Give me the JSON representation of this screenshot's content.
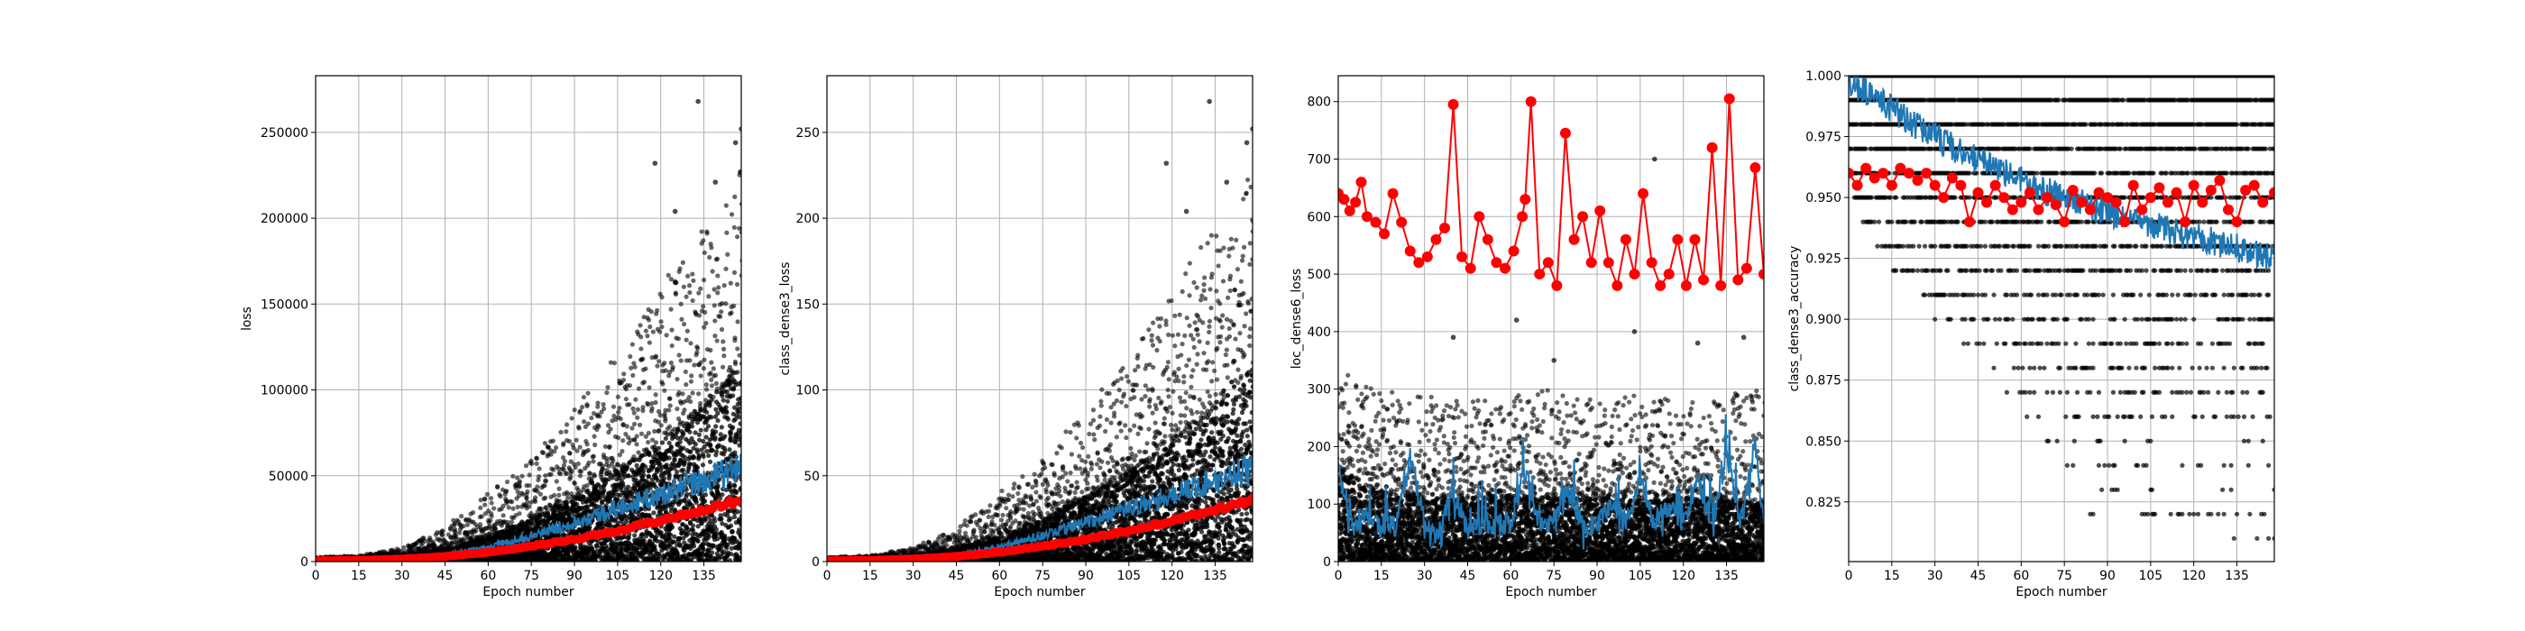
{
  "chart_data": [
    {
      "type": "scatter",
      "xlabel": "Epoch number",
      "ylabel": "loss",
      "xlim": [
        0,
        148
      ],
      "ylim": [
        0,
        283000
      ],
      "grid": true,
      "x_ticks": [
        0,
        15,
        30,
        45,
        60,
        75,
        90,
        105,
        120,
        135
      ],
      "y_ticks": [
        0,
        50000,
        100000,
        150000,
        200000,
        250000
      ],
      "y_tick_labels": [
        "0",
        "50000",
        "100000",
        "150000",
        "200000",
        "250000"
      ],
      "series": [
        {
          "role": "scatter",
          "color": "#000000",
          "kind": "points",
          "envelope_x": [
            0,
            15,
            30,
            45,
            60,
            75,
            90,
            105,
            120,
            135,
            148
          ],
          "envelope_low": [
            0,
            0,
            0,
            0,
            0,
            0,
            0,
            0,
            0,
            0,
            0
          ],
          "envelope_mid": [
            1500,
            1800,
            3000,
            7000,
            14000,
            24000,
            37000,
            52000,
            70000,
            90000,
            112000
          ],
          "envelope_high": [
            2500,
            3500,
            8000,
            20000,
            40000,
            60000,
            90000,
            120000,
            160000,
            195000,
            230000
          ],
          "extremes": [
            [
              118,
              232000
            ],
            [
              133,
              268000
            ],
            [
              148,
              252000
            ],
            [
              146,
              244000
            ],
            [
              125,
              204000
            ],
            [
              139,
              221000
            ]
          ]
        },
        {
          "role": "line",
          "color": "#1f77b4",
          "kind": "line",
          "x": [
            0,
            15,
            30,
            45,
            60,
            75,
            90,
            105,
            120,
            135,
            148
          ],
          "y": [
            500,
            800,
            1800,
            4200,
            8500,
            15000,
            23000,
            31000,
            39000,
            47000,
            55000
          ]
        },
        {
          "role": "markers",
          "color": "#ff0000",
          "kind": "line+markers",
          "x": [
            0,
            15,
            30,
            45,
            60,
            75,
            90,
            105,
            120,
            135,
            148
          ],
          "y": [
            500,
            700,
            1500,
            3000,
            5500,
            9000,
            13000,
            18000,
            24000,
            30000,
            36000
          ]
        }
      ]
    },
    {
      "type": "scatter",
      "xlabel": "Epoch number",
      "ylabel": "class_dense3_loss",
      "xlim": [
        0,
        148
      ],
      "ylim": [
        0,
        283
      ],
      "grid": true,
      "x_ticks": [
        0,
        15,
        30,
        45,
        60,
        75,
        90,
        105,
        120,
        135
      ],
      "y_ticks": [
        0,
        50,
        100,
        150,
        200,
        250
      ],
      "y_tick_labels": [
        "0",
        "50",
        "100",
        "150",
        "200",
        "250"
      ],
      "series": [
        {
          "role": "scatter",
          "color": "#000000",
          "kind": "points",
          "envelope_x": [
            0,
            15,
            30,
            45,
            60,
            75,
            90,
            105,
            120,
            135,
            148
          ],
          "envelope_low": [
            0,
            0,
            0,
            0,
            0,
            0,
            0,
            0,
            0,
            0,
            0
          ],
          "envelope_mid": [
            1.5,
            1.8,
            3,
            7,
            14,
            24,
            37,
            52,
            70,
            90,
            112
          ],
          "envelope_high": [
            2.5,
            3.5,
            8,
            20,
            40,
            60,
            90,
            120,
            160,
            195,
            230
          ],
          "extremes": [
            [
              118,
              232
            ],
            [
              133,
              268
            ],
            [
              148,
              252
            ],
            [
              146,
              244
            ],
            [
              125,
              204
            ],
            [
              139,
              221
            ]
          ]
        },
        {
          "role": "line",
          "color": "#1f77b4",
          "kind": "line",
          "x": [
            0,
            15,
            30,
            45,
            60,
            75,
            90,
            105,
            120,
            135,
            148
          ],
          "y": [
            0.5,
            0.8,
            1.8,
            4.2,
            8.5,
            15,
            23,
            31,
            39,
            47,
            55
          ]
        },
        {
          "role": "markers",
          "color": "#ff0000",
          "kind": "line+markers",
          "x": [
            0,
            15,
            30,
            45,
            60,
            75,
            90,
            105,
            120,
            135,
            148
          ],
          "y": [
            0.5,
            0.7,
            1.5,
            3,
            5.5,
            9,
            13,
            18,
            24,
            30,
            36
          ]
        }
      ]
    },
    {
      "type": "scatter",
      "xlabel": "Epoch number",
      "ylabel": "loc_dense6_loss",
      "xlim": [
        0,
        148
      ],
      "ylim": [
        0,
        845
      ],
      "grid": true,
      "x_ticks": [
        0,
        15,
        30,
        45,
        60,
        75,
        90,
        105,
        120,
        135
      ],
      "y_ticks": [
        0,
        100,
        200,
        300,
        400,
        500,
        600,
        700,
        800
      ],
      "y_tick_labels": [
        "0",
        "100",
        "200",
        "300",
        "400",
        "500",
        "600",
        "700",
        "800"
      ],
      "series": [
        {
          "role": "scatter",
          "color": "#000000",
          "kind": "points",
          "envelope_x": [
            0,
            15,
            30,
            45,
            60,
            75,
            90,
            105,
            120,
            135,
            148
          ],
          "envelope_low": [
            0,
            0,
            0,
            0,
            0,
            0,
            0,
            0,
            0,
            0,
            0
          ],
          "envelope_mid": [
            160,
            120,
            110,
            110,
            115,
            110,
            110,
            105,
            110,
            105,
            100
          ],
          "envelope_high": [
            330,
            300,
            290,
            280,
            290,
            300,
            280,
            290,
            280,
            290,
            300
          ],
          "extremes": [
            [
              40,
              390
            ],
            [
              62,
              420
            ],
            [
              75,
              350
            ],
            [
              103,
              400
            ],
            [
              110,
              700
            ],
            [
              125,
              380
            ],
            [
              141,
              390
            ]
          ]
        },
        {
          "role": "line",
          "color": "#1f77b4",
          "kind": "line",
          "x": [
            0,
            5,
            10,
            15,
            20,
            25,
            30,
            35,
            40,
            45,
            50,
            55,
            60,
            65,
            70,
            75,
            80,
            85,
            90,
            95,
            100,
            105,
            110,
            115,
            120,
            125,
            130,
            135,
            140,
            145,
            148
          ],
          "y": [
            150,
            55,
            70,
            50,
            55,
            170,
            60,
            50,
            110,
            50,
            60,
            55,
            60,
            150,
            50,
            70,
            120,
            55,
            50,
            100,
            60,
            130,
            60,
            90,
            55,
            130,
            60,
            180,
            60,
            200,
            60
          ]
        },
        {
          "role": "markers",
          "color": "#ff0000",
          "kind": "line+markers",
          "x": [
            0,
            2,
            4,
            6,
            8,
            10,
            13,
            16,
            19,
            22,
            25,
            28,
            31,
            34,
            37,
            40,
            43,
            46,
            49,
            52,
            55,
            58,
            61,
            64,
            65,
            67,
            70,
            73,
            76,
            79,
            82,
            85,
            88,
            91,
            94,
            97,
            100,
            103,
            106,
            109,
            112,
            115,
            118,
            121,
            124,
            127,
            130,
            133,
            136,
            139,
            142,
            145,
            148
          ],
          "y": [
            640,
            630,
            610,
            625,
            660,
            600,
            590,
            570,
            640,
            590,
            540,
            520,
            530,
            560,
            580,
            795,
            530,
            510,
            600,
            560,
            520,
            510,
            540,
            600,
            630,
            800,
            500,
            520,
            480,
            745,
            560,
            600,
            520,
            610,
            520,
            480,
            560,
            500,
            640,
            520,
            480,
            500,
            560,
            480,
            560,
            490,
            720,
            480,
            805,
            490,
            510,
            685,
            500
          ]
        }
      ]
    },
    {
      "type": "scatter",
      "xlabel": "Epoch number",
      "ylabel": "class_dense3_accuracy",
      "xlim": [
        0,
        148
      ],
      "ylim": [
        0.8005,
        1.0
      ],
      "grid": true,
      "x_ticks": [
        0,
        15,
        30,
        45,
        60,
        75,
        90,
        105,
        120,
        135
      ],
      "y_ticks": [
        0.825,
        0.85,
        0.875,
        0.9,
        0.925,
        0.95,
        0.975,
        1.0
      ],
      "y_tick_labels": [
        "0.825",
        "0.850",
        "0.875",
        "0.900",
        "0.925",
        "0.950",
        "0.975",
        "1.000"
      ],
      "series": [
        {
          "role": "scatter",
          "color": "#000000",
          "kind": "discrete-levels",
          "levels": [
            1.0,
            0.99,
            0.98,
            0.97,
            0.96,
            0.95,
            0.94,
            0.93,
            0.92,
            0.91,
            0.9,
            0.89,
            0.88,
            0.87,
            0.86,
            0.85,
            0.84,
            0.83,
            0.82,
            0.81
          ],
          "level_start_epoch": [
            0,
            0,
            0,
            0,
            0,
            2,
            5,
            10,
            15,
            25,
            30,
            40,
            50,
            55,
            60,
            68,
            70,
            78,
            80,
            120
          ]
        },
        {
          "role": "line",
          "color": "#1f77b4",
          "kind": "line",
          "x": [
            0,
            10,
            20,
            30,
            40,
            50,
            60,
            70,
            80,
            90,
            100,
            110,
            120,
            130,
            140,
            148
          ],
          "y": [
            0.998,
            0.99,
            0.982,
            0.975,
            0.968,
            0.962,
            0.957,
            0.952,
            0.948,
            0.944,
            0.94,
            0.937,
            0.934,
            0.931,
            0.928,
            0.925
          ]
        },
        {
          "role": "markers",
          "color": "#ff0000",
          "kind": "line+markers",
          "x": [
            0,
            3,
            6,
            9,
            12,
            15,
            18,
            21,
            24,
            27,
            30,
            33,
            36,
            39,
            42,
            45,
            48,
            51,
            54,
            57,
            60,
            63,
            66,
            69,
            72,
            75,
            78,
            81,
            84,
            87,
            90,
            93,
            96,
            99,
            102,
            105,
            108,
            111,
            114,
            117,
            120,
            123,
            126,
            129,
            132,
            135,
            138,
            141,
            144,
            148
          ],
          "y": [
            0.96,
            0.955,
            0.962,
            0.958,
            0.96,
            0.955,
            0.962,
            0.96,
            0.957,
            0.96,
            0.955,
            0.95,
            0.958,
            0.955,
            0.94,
            0.952,
            0.948,
            0.955,
            0.95,
            0.945,
            0.948,
            0.952,
            0.945,
            0.95,
            0.947,
            0.94,
            0.953,
            0.948,
            0.945,
            0.952,
            0.95,
            0.948,
            0.94,
            0.955,
            0.945,
            0.95,
            0.954,
            0.948,
            0.952,
            0.94,
            0.955,
            0.948,
            0.953,
            0.957,
            0.945,
            0.94,
            0.953,
            0.955,
            0.948,
            0.952
          ]
        }
      ]
    }
  ]
}
